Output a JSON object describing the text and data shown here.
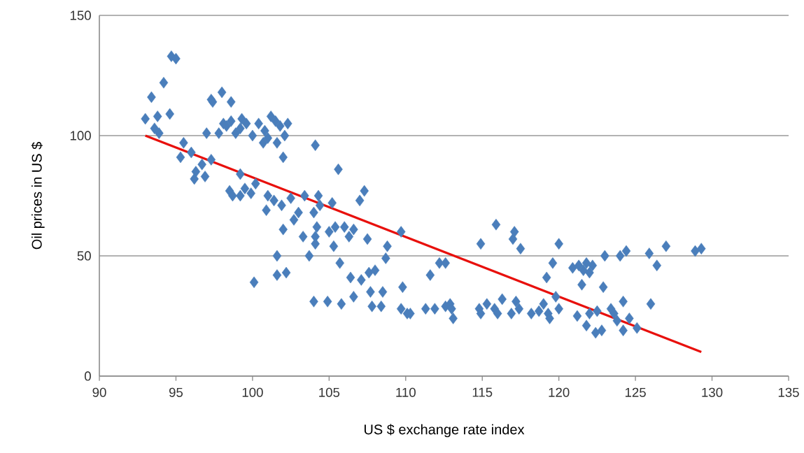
{
  "chart_data": {
    "type": "scatter",
    "xlabel": "US $ exchange rate index",
    "ylabel": "Oil prices in US $",
    "xlim": [
      90,
      135
    ],
    "ylim": [
      0,
      150
    ],
    "xticks": [
      90,
      95,
      100,
      105,
      110,
      115,
      120,
      125,
      130,
      135
    ],
    "yticks": [
      0,
      50,
      100,
      150
    ],
    "grid": "y",
    "marker": "diamond",
    "series": [
      {
        "color": "#4a7ebb",
        "x": [
          93.0,
          93.4,
          93.8,
          93.6,
          94.2,
          94.7,
          95.0,
          94.6,
          93.9,
          95.3,
          95.5,
          96.0,
          96.3,
          96.2,
          96.7,
          96.9,
          97.3,
          97.0,
          97.4,
          97.3,
          97.8,
          98.0,
          98.3,
          98.6,
          98.1,
          98.6,
          98.9,
          99.3,
          99.6,
          99.2,
          100.0,
          100.4,
          100.8,
          101.2,
          101.5,
          101.0,
          101.8,
          102.1,
          102.3,
          101.6,
          100.7,
          98.5,
          98.7,
          99.2,
          99.5,
          99.2,
          100.2,
          99.9,
          100.1,
          100.9,
          101.0,
          101.4,
          101.6,
          101.6,
          101.9,
          102.0,
          102.2,
          102.0,
          102.5,
          102.7,
          103.0,
          103.3,
          103.4,
          103.7,
          104.1,
          104.0,
          104.2,
          104.3,
          104.1,
          104.0,
          104.1,
          104.4,
          104.9,
          105.0,
          105.3,
          105.4,
          105.2,
          105.6,
          105.7,
          105.8,
          106.0,
          106.3,
          106.4,
          106.6,
          106.6,
          107.0,
          107.3,
          107.1,
          107.5,
          107.6,
          107.7,
          107.8,
          108.0,
          108.4,
          108.5,
          108.8,
          108.7,
          109.7,
          109.8,
          109.7,
          110.1,
          110.3,
          111.3,
          111.6,
          111.9,
          112.2,
          112.6,
          112.9,
          112.6,
          113.1,
          113.0,
          114.9,
          114.8,
          114.9,
          115.3,
          115.8,
          115.9,
          116.3,
          116.0,
          116.9,
          117.1,
          117.0,
          117.2,
          117.5,
          117.4,
          118.2,
          118.7,
          119.0,
          119.2,
          119.3,
          119.6,
          119.8,
          120.0,
          120.0,
          119.4,
          120.9,
          121.3,
          121.5,
          121.8,
          121.6,
          122.0,
          122.2,
          121.8,
          122.5,
          122.8,
          122.4,
          122.9,
          123.0,
          123.4,
          123.8,
          123.6,
          124.0,
          124.2,
          124.4,
          124.2,
          124.6,
          125.1,
          125.9,
          126.0,
          126.4,
          127.0,
          128.9,
          129.3,
          121.2,
          122.0
        ],
        "values": [
          107,
          116,
          108,
          103,
          122,
          133,
          132,
          109,
          101,
          91,
          97,
          93,
          85,
          82,
          88,
          83,
          90,
          101,
          114,
          115,
          101,
          118,
          104,
          114,
          105,
          106,
          101,
          107,
          105,
          103,
          100,
          105,
          102,
          108,
          106,
          99,
          104,
          100,
          105,
          97,
          97,
          77,
          75,
          75,
          78,
          84,
          80,
          76,
          39,
          69,
          75,
          73,
          50,
          42,
          71,
          61,
          43,
          91,
          74,
          65,
          68,
          58,
          75,
          50,
          96,
          68,
          62,
          75,
          58,
          31,
          55,
          71,
          31,
          60,
          54,
          62,
          72,
          86,
          47,
          30,
          62,
          58,
          41,
          61,
          33,
          73,
          77,
          40,
          57,
          43,
          35,
          29,
          44,
          29,
          35,
          54,
          49,
          60,
          37,
          28,
          26,
          26,
          28,
          42,
          28,
          47,
          29,
          30,
          47,
          24,
          28,
          55,
          28,
          26,
          30,
          28,
          63,
          32,
          26,
          26,
          60,
          57,
          31,
          53,
          28,
          26,
          27,
          30,
          41,
          26,
          47,
          33,
          55,
          28,
          24,
          45,
          46,
          38,
          47,
          44,
          43,
          46,
          21,
          27,
          19,
          18,
          37,
          50,
          28,
          23,
          26,
          50,
          31,
          52,
          19,
          24,
          20,
          51,
          30,
          46,
          54,
          52,
          53,
          25,
          26
        ]
      },
      {
        "type": "line",
        "color": "#e8100c",
        "marker": "none",
        "x": [
          93.0,
          129.3
        ],
        "values": [
          100,
          10
        ]
      }
    ]
  }
}
